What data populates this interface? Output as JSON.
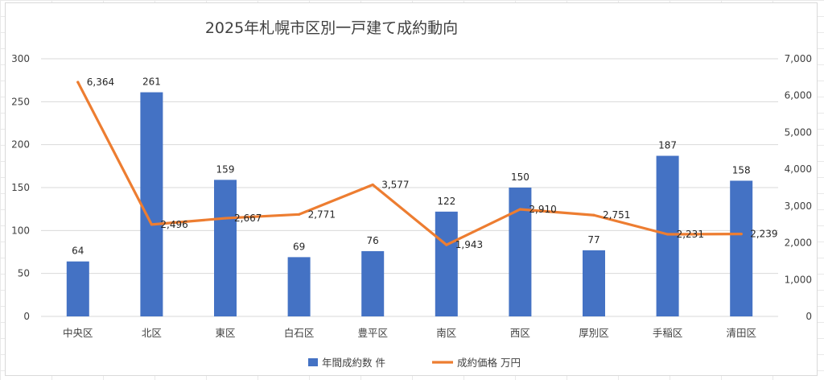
{
  "chart_data": {
    "type": "bar",
    "title": "2025年札幌市区別一戸建て成約動向",
    "categories": [
      "中央区",
      "北区",
      "東区",
      "白石区",
      "豊平区",
      "南区",
      "西区",
      "厚別区",
      "手稲区",
      "清田区"
    ],
    "series": [
      {
        "name": "年間成約数 件",
        "type": "bar",
        "axis": "left",
        "color": "#4472C4",
        "values": [
          64,
          261,
          159,
          69,
          76,
          122,
          150,
          77,
          187,
          158
        ],
        "labels": [
          "64",
          "261",
          "159",
          "69",
          "76",
          "122",
          "150",
          "77",
          "187",
          "158"
        ]
      },
      {
        "name": "成約価格 万円",
        "type": "line",
        "axis": "right",
        "color": "#ED7D31",
        "values": [
          6364,
          2496,
          2667,
          2771,
          3577,
          1943,
          2910,
          2751,
          2231,
          2239
        ],
        "labels": [
          "6,364",
          "2,496",
          "2,667",
          "2,771",
          "3,577",
          "1,943",
          "2,910",
          "2,751",
          "2,231",
          "2,239"
        ]
      }
    ],
    "y_left": {
      "min": 0,
      "max": 300,
      "ticks": [
        "0",
        "50",
        "100",
        "150",
        "200",
        "250",
        "300"
      ]
    },
    "y_right": {
      "min": 0,
      "max": 7000,
      "ticks": [
        "0",
        "1,000",
        "2,000",
        "3,000",
        "4,000",
        "5,000",
        "6,000",
        "7,000"
      ]
    },
    "grid": true,
    "legend_position": "bottom",
    "colors": {
      "gridline": "#d9d9d9",
      "text": "#404040"
    }
  }
}
